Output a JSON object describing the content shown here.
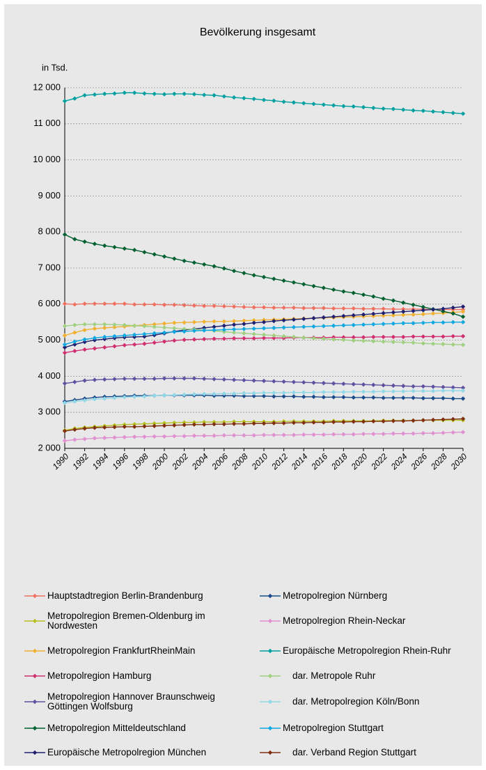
{
  "chart_data": {
    "type": "line",
    "title": "Bevölkerung insgesamt",
    "y_label": "in Tsd.",
    "x": [
      1990,
      1991,
      1992,
      1993,
      1994,
      1995,
      1996,
      1997,
      1998,
      1999,
      2000,
      2001,
      2002,
      2003,
      2004,
      2005,
      2006,
      2007,
      2008,
      2009,
      2010,
      2011,
      2012,
      2013,
      2014,
      2015,
      2016,
      2017,
      2018,
      2019,
      2020,
      2021,
      2022,
      2023,
      2024,
      2025,
      2026,
      2027,
      2028,
      2029,
      2030
    ],
    "xlim": [
      1990,
      2030
    ],
    "xticks": [
      1990,
      1992,
      1994,
      1996,
      1998,
      2000,
      2002,
      2004,
      2006,
      2008,
      2010,
      2012,
      2014,
      2016,
      2018,
      2020,
      2022,
      2024,
      2026,
      2028,
      2030
    ],
    "ylim": [
      2000,
      12000
    ],
    "yticks": [
      {
        "value": 2000,
        "label": "2 000"
      },
      {
        "value": 3000,
        "label": "3 000"
      },
      {
        "value": 4000,
        "label": "4 000"
      },
      {
        "value": 5000,
        "label": "5 000"
      },
      {
        "value": 6000,
        "label": "6 000"
      },
      {
        "value": 7000,
        "label": "7 000"
      },
      {
        "value": 8000,
        "label": "8 000"
      },
      {
        "value": 9000,
        "label": "9 000"
      },
      {
        "value": 10000,
        "label": "10 000"
      },
      {
        "value": 11000,
        "label": "11 000"
      },
      {
        "value": 12000,
        "label": "12 000"
      }
    ],
    "grid": true,
    "series": [
      {
        "name": "Hauptstadtregion Berlin-Brandenburg",
        "color": "#f07060",
        "values": [
          6010,
          5990,
          6010,
          6010,
          6010,
          6010,
          6010,
          5990,
          5990,
          5990,
          5980,
          5980,
          5970,
          5960,
          5950,
          5950,
          5940,
          5930,
          5920,
          5910,
          5910,
          5900,
          5900,
          5900,
          5890,
          5890,
          5890,
          5880,
          5880,
          5880,
          5870,
          5870,
          5870,
          5860,
          5860,
          5860,
          5860,
          5850,
          5850,
          5850,
          5850
        ]
      },
      {
        "name": "Metropolregion Bremen-Oldenburg im Nordwesten",
        "color": "#b5c020",
        "values": [
          2500,
          2550,
          2580,
          2600,
          2620,
          2640,
          2660,
          2670,
          2680,
          2690,
          2700,
          2710,
          2720,
          2720,
          2730,
          2730,
          2730,
          2740,
          2740,
          2740,
          2740,
          2740,
          2750,
          2750,
          2750,
          2750,
          2750,
          2760,
          2760,
          2760,
          2760,
          2760,
          2770,
          2770,
          2770,
          2770,
          2780,
          2780,
          2780,
          2780,
          2780
        ]
      },
      {
        "name": "Metropolregion FrankfurtRheinMain",
        "color": "#f0b030",
        "values": [
          5130,
          5210,
          5280,
          5320,
          5340,
          5360,
          5380,
          5400,
          5420,
          5440,
          5460,
          5480,
          5490,
          5500,
          5510,
          5520,
          5520,
          5530,
          5540,
          5550,
          5560,
          5570,
          5580,
          5590,
          5600,
          5610,
          5620,
          5630,
          5640,
          5650,
          5660,
          5670,
          5680,
          5690,
          5700,
          5710,
          5720,
          5740,
          5750,
          5770,
          5790
        ]
      },
      {
        "name": "Metropolregion Hamburg",
        "color": "#d03070",
        "values": [
          4650,
          4700,
          4740,
          4770,
          4800,
          4830,
          4860,
          4880,
          4900,
          4930,
          4960,
          4990,
          5010,
          5020,
          5030,
          5040,
          5040,
          5050,
          5050,
          5050,
          5060,
          5060,
          5060,
          5070,
          5070,
          5070,
          5070,
          5080,
          5080,
          5080,
          5080,
          5090,
          5090,
          5090,
          5090,
          5100,
          5100,
          5100,
          5100,
          5110,
          5110
        ]
      },
      {
        "name": "Metropolregion Hannover Braunschweig Göttingen Wolfsburg",
        "color": "#6050a0",
        "values": [
          3800,
          3840,
          3880,
          3900,
          3910,
          3920,
          3930,
          3930,
          3930,
          3930,
          3940,
          3940,
          3940,
          3940,
          3930,
          3920,
          3910,
          3900,
          3890,
          3880,
          3870,
          3860,
          3850,
          3840,
          3830,
          3820,
          3810,
          3800,
          3790,
          3780,
          3770,
          3760,
          3750,
          3740,
          3730,
          3720,
          3720,
          3710,
          3700,
          3690,
          3680
        ]
      },
      {
        "name": "Metropolregion Mitteldeutschland",
        "color": "#006030",
        "values": [
          7930,
          7800,
          7730,
          7670,
          7620,
          7580,
          7540,
          7500,
          7440,
          7380,
          7320,
          7260,
          7200,
          7150,
          7100,
          7050,
          6990,
          6920,
          6860,
          6800,
          6750,
          6700,
          6650,
          6600,
          6550,
          6500,
          6450,
          6400,
          6350,
          6310,
          6260,
          6210,
          6150,
          6100,
          6040,
          5980,
          5920,
          5860,
          5800,
          5740,
          5650
        ]
      },
      {
        "name": "Europäische Metropolregion München",
        "color": "#202070",
        "values": [
          4800,
          4880,
          4950,
          5000,
          5030,
          5060,
          5080,
          5090,
          5100,
          5140,
          5190,
          5240,
          5280,
          5310,
          5340,
          5370,
          5400,
          5430,
          5450,
          5480,
          5500,
          5530,
          5550,
          5570,
          5590,
          5610,
          5630,
          5650,
          5670,
          5690,
          5710,
          5730,
          5750,
          5770,
          5790,
          5810,
          5830,
          5850,
          5870,
          5900,
          5930
        ]
      },
      {
        "name": "Metropolregion Nürnberg",
        "color": "#1a4a8a",
        "values": [
          3300,
          3340,
          3380,
          3410,
          3430,
          3440,
          3450,
          3460,
          3460,
          3460,
          3470,
          3470,
          3470,
          3470,
          3470,
          3460,
          3460,
          3460,
          3450,
          3450,
          3450,
          3440,
          3440,
          3440,
          3430,
          3430,
          3420,
          3420,
          3420,
          3410,
          3410,
          3410,
          3400,
          3400,
          3400,
          3400,
          3390,
          3390,
          3390,
          3380,
          3380
        ]
      },
      {
        "name": "Metropolregion Rhein-Neckar",
        "color": "#e090d0",
        "values": [
          2210,
          2240,
          2260,
          2280,
          2290,
          2300,
          2310,
          2320,
          2320,
          2330,
          2330,
          2340,
          2340,
          2350,
          2350,
          2350,
          2360,
          2360,
          2360,
          2360,
          2370,
          2370,
          2370,
          2370,
          2380,
          2380,
          2380,
          2390,
          2390,
          2390,
          2400,
          2400,
          2400,
          2410,
          2410,
          2410,
          2420,
          2420,
          2430,
          2440,
          2450
        ]
      },
      {
        "name": "Europäische Metropolregion Rhein-Ruhr",
        "color": "#00a0a0",
        "values": [
          11630,
          11700,
          11790,
          11810,
          11830,
          11840,
          11860,
          11860,
          11840,
          11830,
          11820,
          11830,
          11830,
          11820,
          11800,
          11790,
          11760,
          11730,
          11710,
          11690,
          11660,
          11640,
          11610,
          11590,
          11570,
          11550,
          11530,
          11510,
          11490,
          11480,
          11460,
          11440,
          11420,
          11410,
          11390,
          11370,
          11360,
          11340,
          11320,
          11300,
          11280
        ]
      },
      {
        "name": "dar. Metropole Ruhr",
        "color": "#a0d080",
        "values": [
          5390,
          5420,
          5440,
          5440,
          5440,
          5430,
          5420,
          5400,
          5390,
          5370,
          5350,
          5330,
          5310,
          5300,
          5280,
          5260,
          5230,
          5210,
          5190,
          5170,
          5150,
          5130,
          5110,
          5090,
          5070,
          5050,
          5040,
          5020,
          5010,
          4990,
          4980,
          4970,
          4960,
          4950,
          4940,
          4930,
          4910,
          4900,
          4890,
          4880,
          4870
        ]
      },
      {
        "name": "dar. Metropolregion Köln/Bonn",
        "color": "#90d8e8",
        "values": [
          3260,
          3300,
          3330,
          3360,
          3380,
          3400,
          3420,
          3430,
          3440,
          3460,
          3470,
          3480,
          3490,
          3500,
          3510,
          3510,
          3520,
          3520,
          3530,
          3530,
          3540,
          3540,
          3540,
          3550,
          3550,
          3550,
          3560,
          3560,
          3560,
          3570,
          3570,
          3570,
          3580,
          3580,
          3580,
          3590,
          3590,
          3590,
          3600,
          3600,
          3600
        ]
      },
      {
        "name": "Metropolregion Stuttgart",
        "color": "#10a8e0",
        "values": [
          4880,
          4960,
          5020,
          5060,
          5090,
          5110,
          5130,
          5150,
          5170,
          5190,
          5210,
          5230,
          5240,
          5260,
          5270,
          5280,
          5290,
          5300,
          5310,
          5320,
          5330,
          5340,
          5350,
          5360,
          5370,
          5380,
          5390,
          5400,
          5410,
          5420,
          5430,
          5440,
          5450,
          5460,
          5470,
          5470,
          5480,
          5490,
          5490,
          5500,
          5500
        ]
      },
      {
        "name": "dar. Verband Region Stuttgart",
        "color": "#803010",
        "values": [
          2480,
          2520,
          2550,
          2570,
          2580,
          2590,
          2600,
          2600,
          2610,
          2620,
          2630,
          2640,
          2650,
          2660,
          2660,
          2670,
          2670,
          2680,
          2680,
          2690,
          2690,
          2700,
          2700,
          2710,
          2710,
          2720,
          2720,
          2730,
          2730,
          2740,
          2740,
          2750,
          2750,
          2760,
          2760,
          2770,
          2780,
          2790,
          2800,
          2810,
          2820
        ]
      }
    ]
  }
}
